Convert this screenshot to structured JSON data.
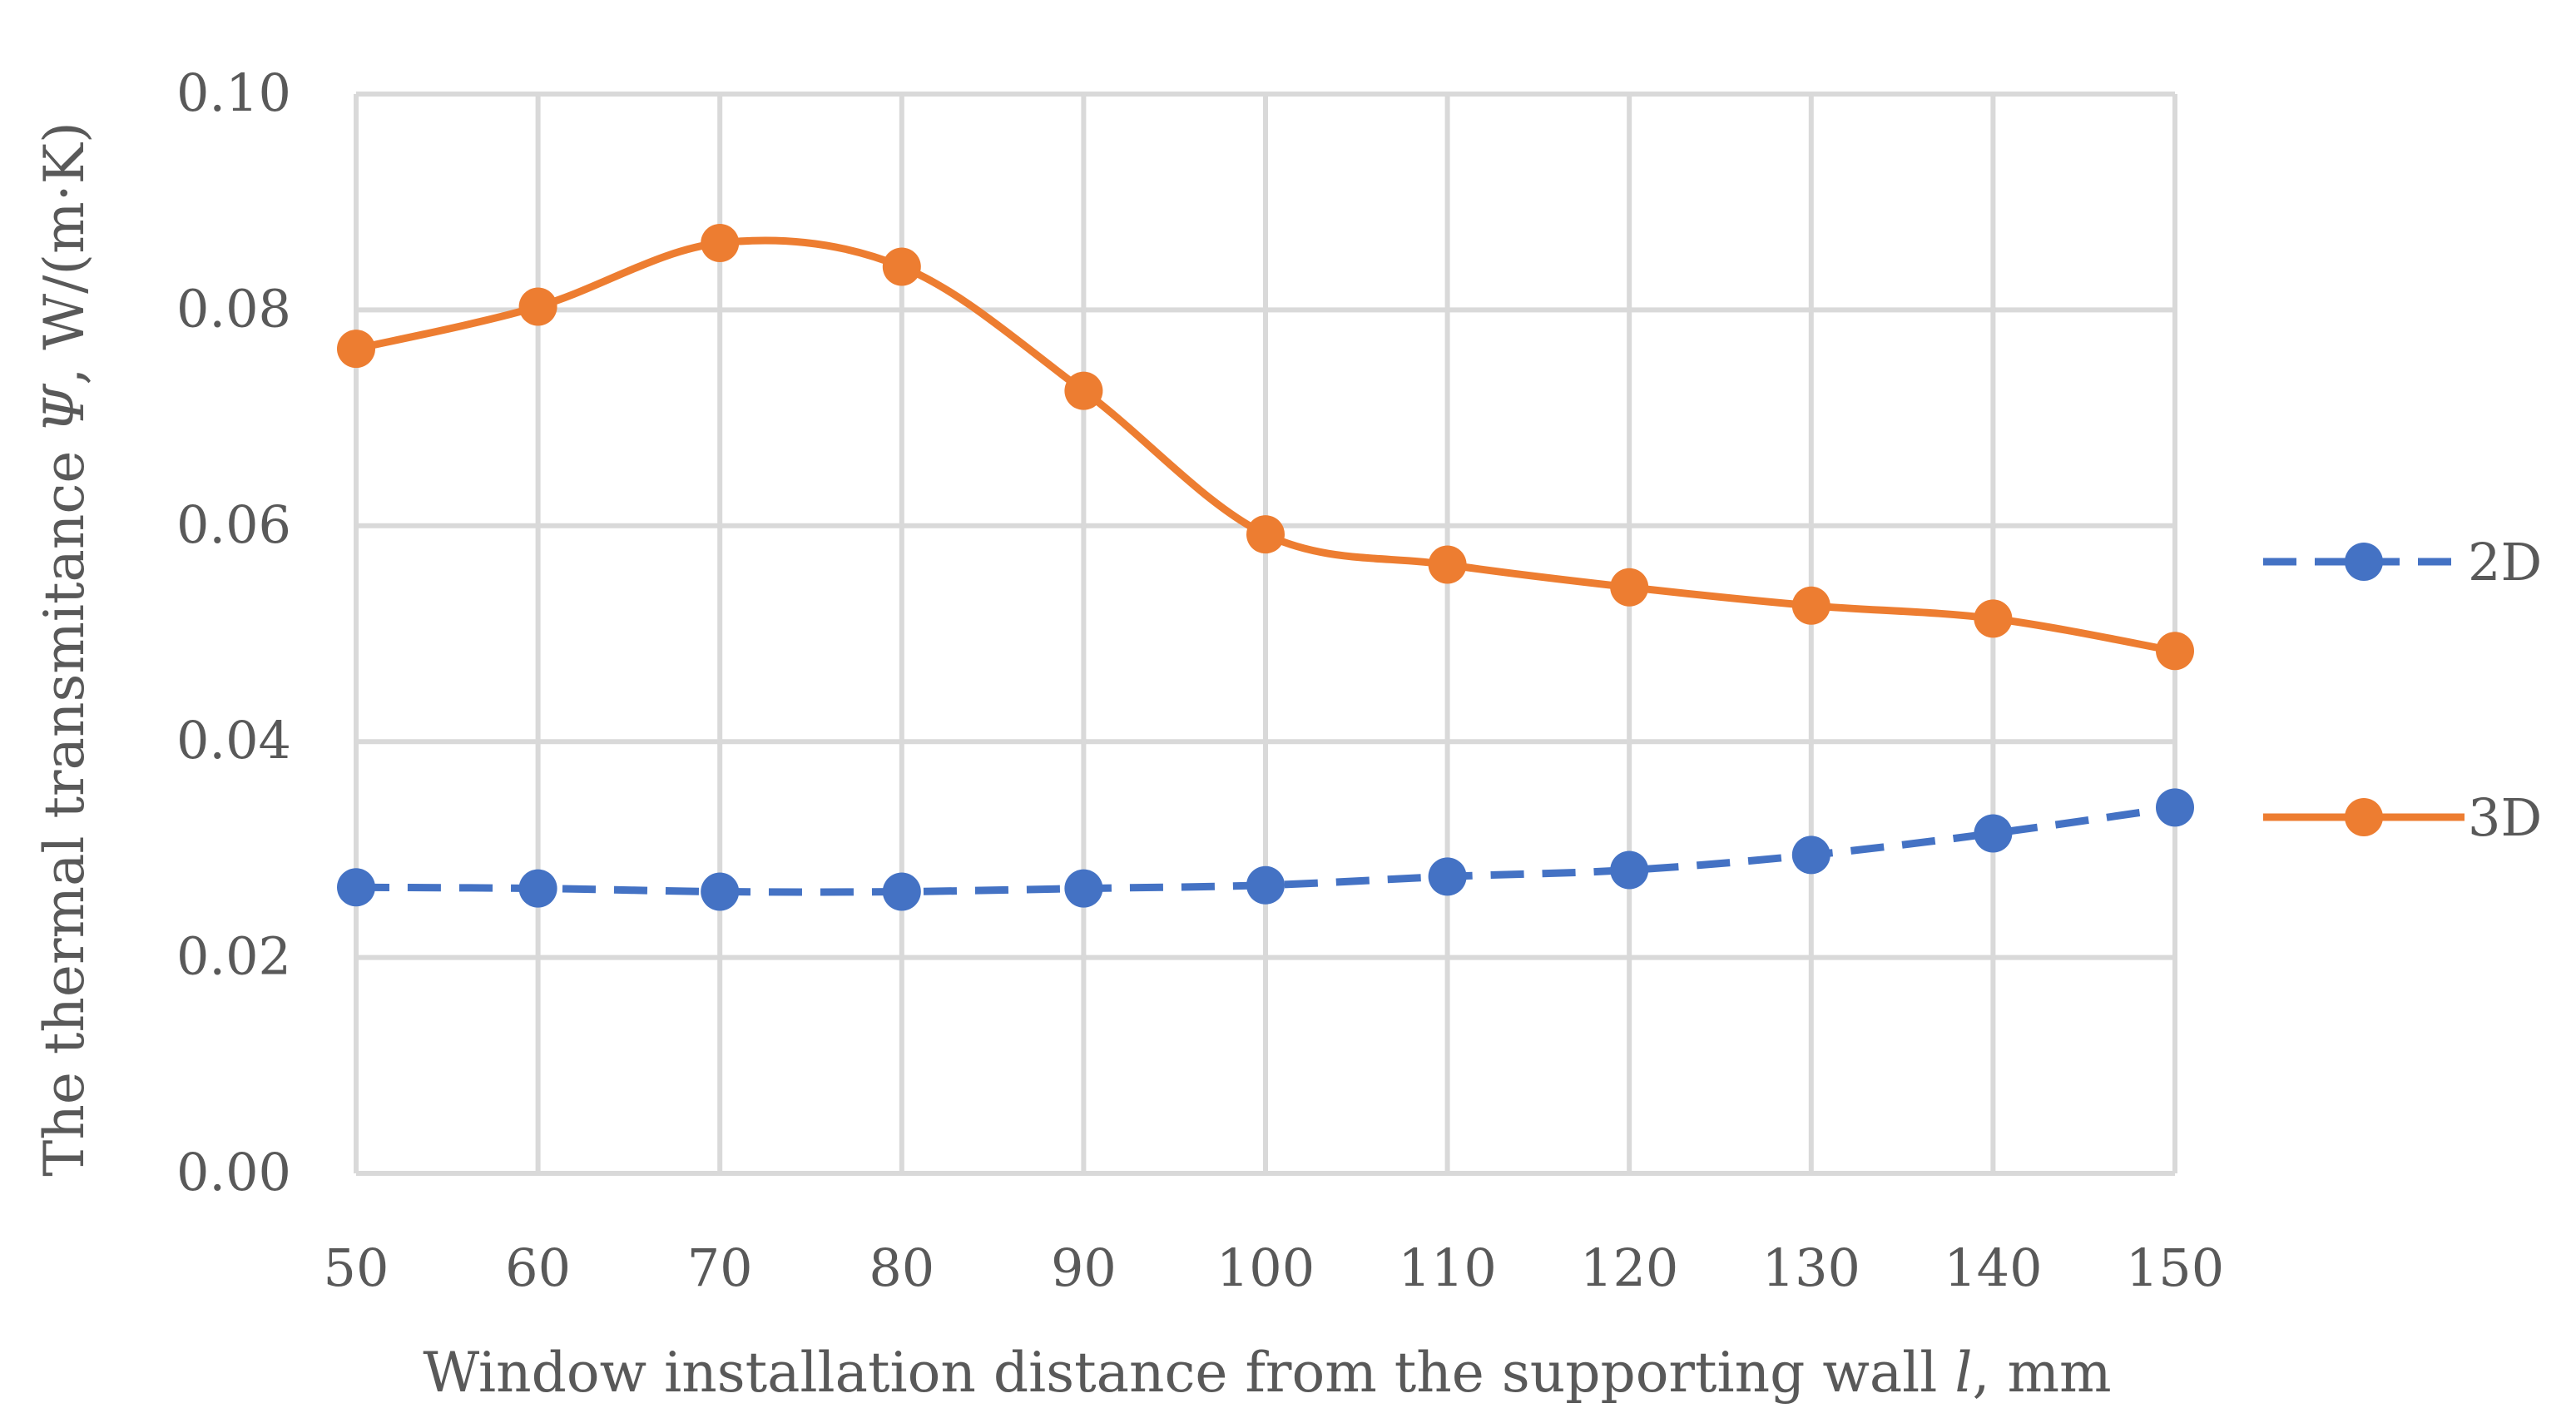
{
  "chart_data": {
    "type": "line",
    "title": "",
    "xlabel": "Window installation distance from the supporting wall l, mm",
    "xlabel_parts": {
      "prefix": "Window installation distance from the supporting wall ",
      "symbol": "l",
      "suffix": ", mm"
    },
    "ylabel": "The thermal transmitance Ψ, W/(m·K)",
    "ylabel_parts": {
      "prefix": "The thermal transmitance ",
      "symbol": "Ψ",
      "suffix": ", W/(m·K)"
    },
    "x": [
      50,
      60,
      70,
      80,
      90,
      100,
      110,
      120,
      130,
      140,
      150
    ],
    "x_tick_labels": [
      "50",
      "60",
      "70",
      "80",
      "90",
      "100",
      "110",
      "120",
      "130",
      "140",
      "150"
    ],
    "ylim": [
      0,
      0.1
    ],
    "y_ticks": [
      0,
      0.02,
      0.04,
      0.06,
      0.08,
      0.1
    ],
    "y_tick_labels": [
      "0.00",
      "0.02",
      "0.04",
      "0.06",
      "0.08",
      "0.10"
    ],
    "grid": true,
    "legend_position": "right",
    "series": [
      {
        "name": "2D",
        "color": "#4472c4",
        "line_style": "dashed",
        "values": [
          0.0265,
          0.0264,
          0.0261,
          0.0261,
          0.0264,
          0.0267,
          0.0275,
          0.0281,
          0.0295,
          0.0315,
          0.0339
        ]
      },
      {
        "name": "3D",
        "color": "#ed7d31",
        "line_style": "solid",
        "values": [
          0.0764,
          0.0803,
          0.0862,
          0.084,
          0.0725,
          0.0592,
          0.0564,
          0.0543,
          0.0526,
          0.0514,
          0.0484
        ]
      }
    ]
  }
}
